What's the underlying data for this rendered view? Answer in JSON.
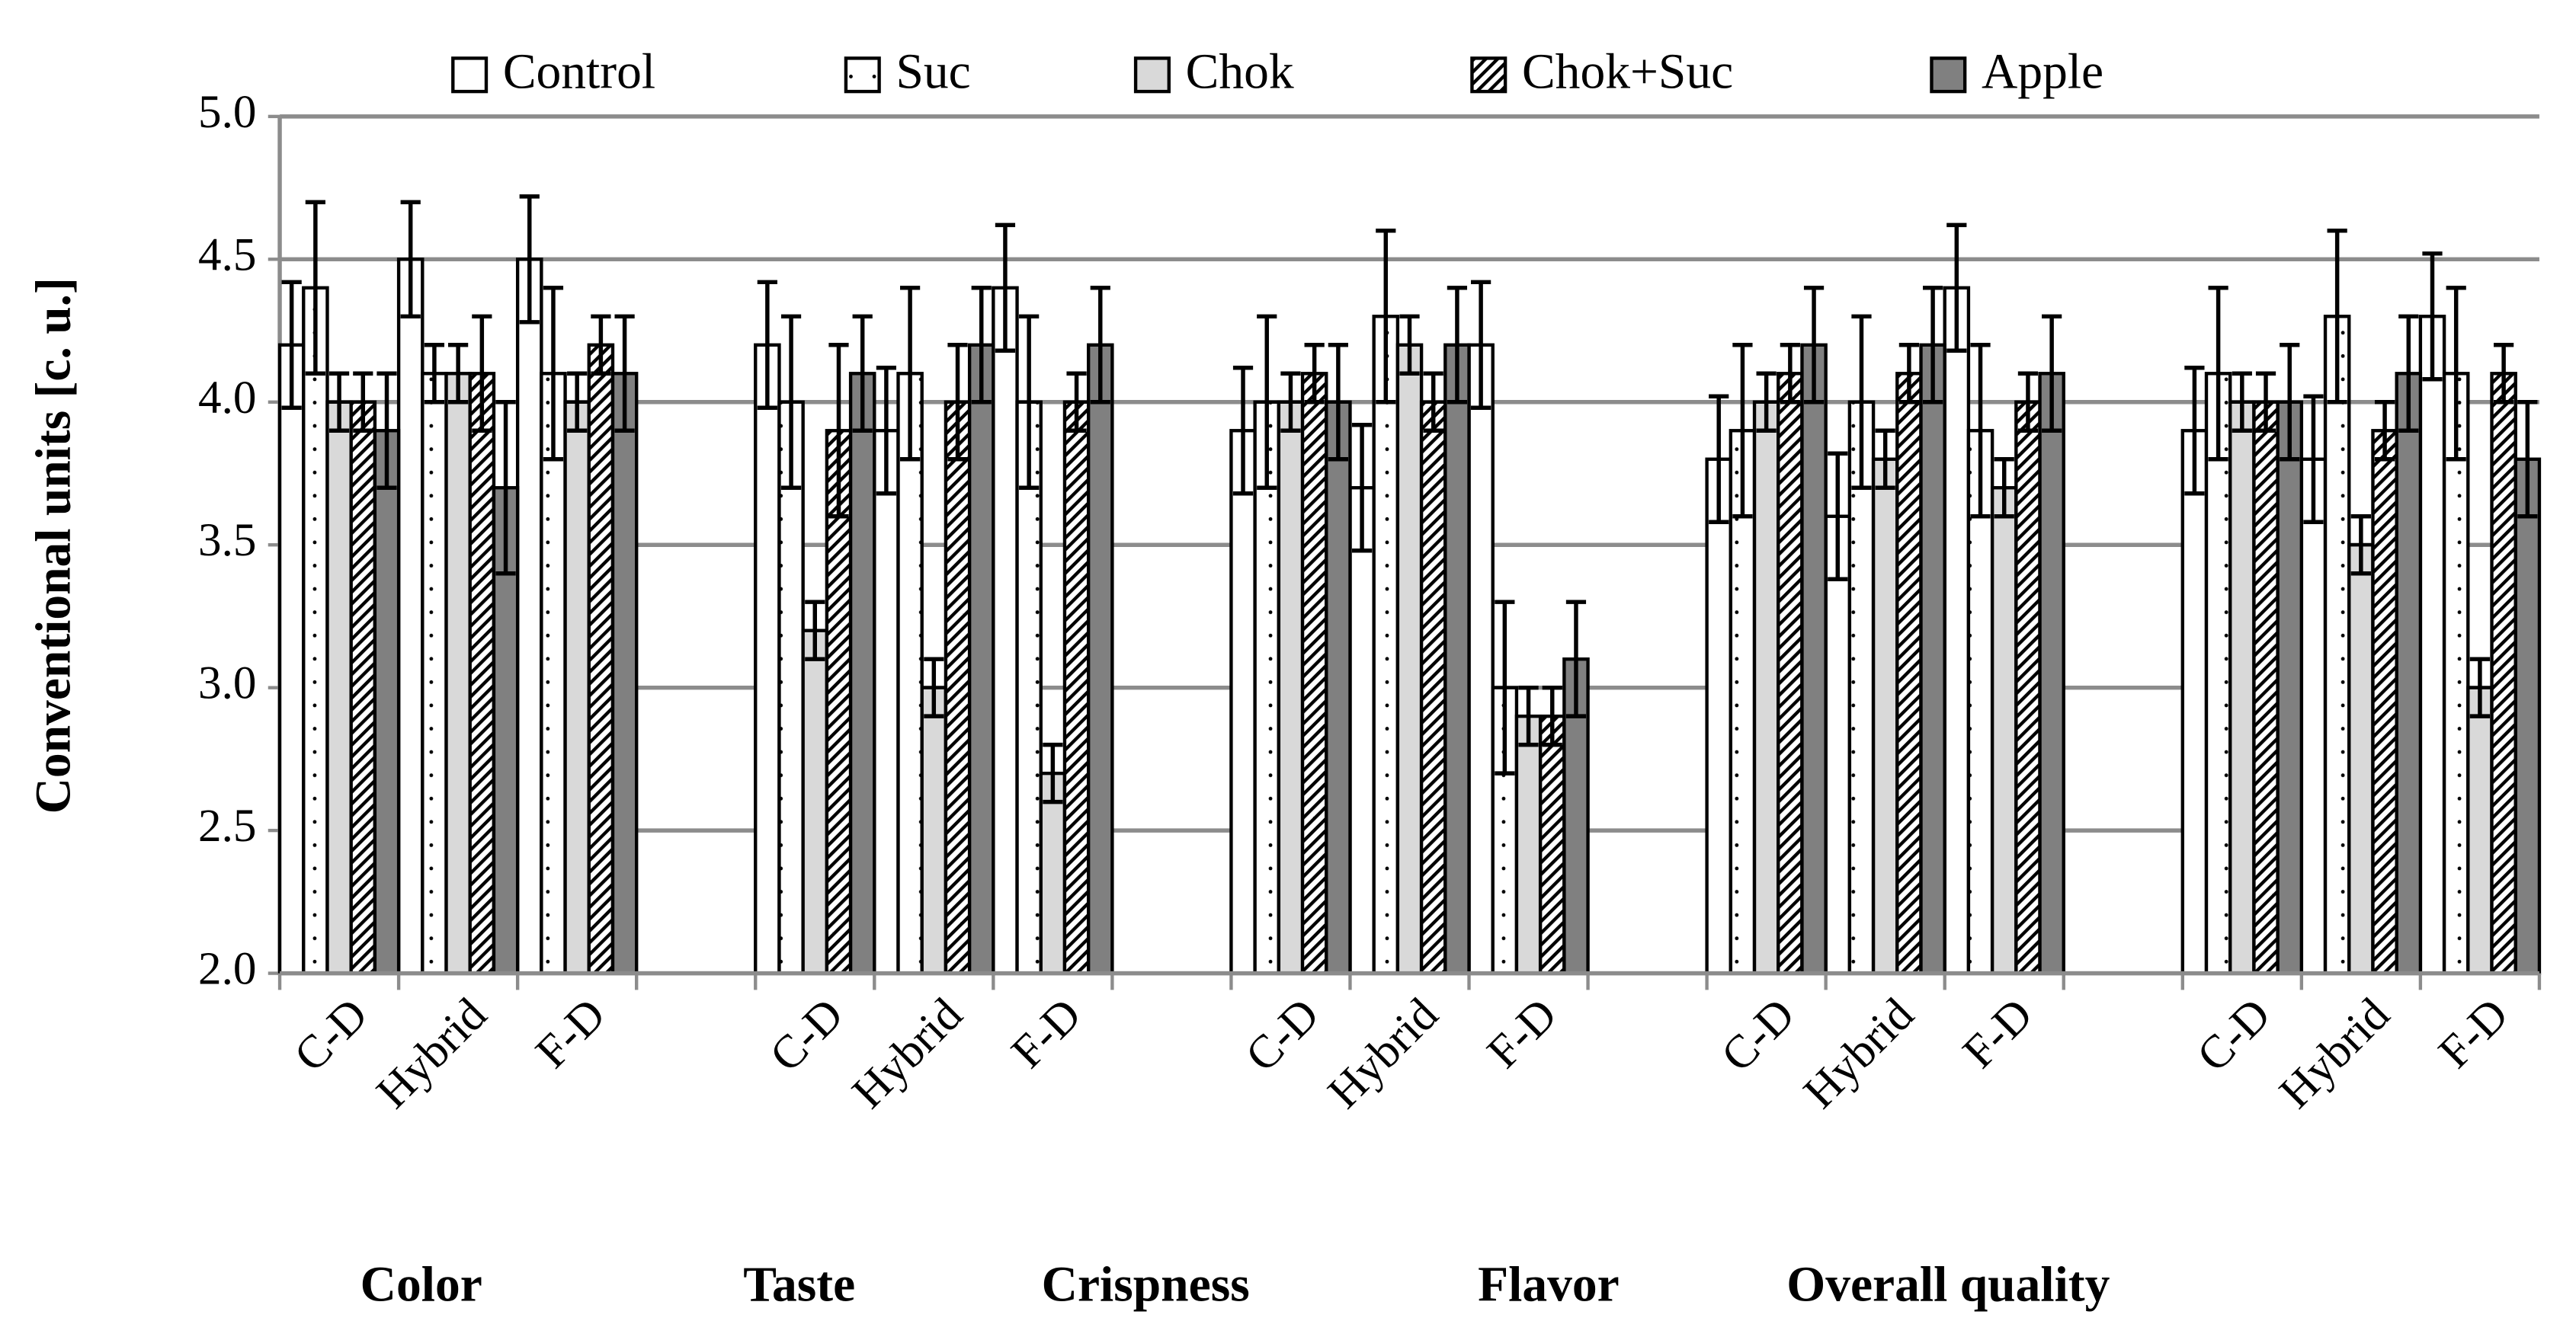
{
  "chart_data": {
    "type": "bar",
    "y_label": "Conventional units [c. u.]",
    "categories": [
      "C-D",
      "Hybrid",
      "F-D",
      null,
      "C-D",
      "Hybrid",
      "F-D",
      null,
      "C-D",
      "Hybrid",
      "F-D",
      null,
      "C-D",
      "Hybrid",
      "F-D",
      null,
      "C-D",
      "Hybrid",
      "F-D"
    ],
    "group_labels": [
      "Color",
      "Taste",
      "Crispness",
      "Flavor",
      "Overall quality"
    ],
    "series": [
      {
        "name": "Control",
        "color": "#ffffff",
        "pattern": "none",
        "values": [
          4.2,
          4.5,
          4.5,
          null,
          4.2,
          3.9,
          4.4,
          null,
          3.9,
          3.7,
          4.2,
          null,
          3.8,
          3.6,
          4.4,
          null,
          3.9,
          3.8,
          4.3
        ],
        "errors": [
          0.22,
          0.2,
          0.22,
          null,
          0.22,
          0.22,
          0.22,
          null,
          0.22,
          0.22,
          0.22,
          null,
          0.22,
          0.22,
          0.22,
          null,
          0.22,
          0.22,
          0.22
        ]
      },
      {
        "name": "Suc",
        "color": "#ffffff",
        "pattern": "dots",
        "values": [
          4.4,
          4.1,
          4.1,
          null,
          4.0,
          4.1,
          4.0,
          null,
          4.0,
          4.3,
          3.0,
          null,
          3.9,
          4.0,
          3.9,
          null,
          4.1,
          4.3,
          4.1
        ],
        "errors": [
          0.3,
          0.1,
          0.3,
          null,
          0.3,
          0.3,
          0.3,
          null,
          0.3,
          0.3,
          0.3,
          null,
          0.3,
          0.3,
          0.3,
          null,
          0.3,
          0.3,
          0.3
        ]
      },
      {
        "name": "Chok",
        "color": "#d9d9d9",
        "pattern": "none",
        "values": [
          4.0,
          4.1,
          4.0,
          null,
          3.2,
          3.0,
          2.7,
          null,
          4.0,
          4.2,
          2.9,
          null,
          4.0,
          3.8,
          3.7,
          null,
          4.0,
          3.5,
          3.0
        ],
        "errors": [
          0.1,
          0.1,
          0.1,
          null,
          0.1,
          0.1,
          0.1,
          null,
          0.1,
          0.1,
          0.1,
          null,
          0.1,
          0.1,
          0.1,
          null,
          0.1,
          0.1,
          0.1
        ]
      },
      {
        "name": "Chok+Suc",
        "color": "#ffffff",
        "pattern": "hatch",
        "values": [
          4.0,
          4.1,
          4.2,
          null,
          3.9,
          4.0,
          4.0,
          null,
          4.1,
          4.0,
          2.9,
          null,
          4.1,
          4.1,
          4.0,
          null,
          4.0,
          3.9,
          4.1
        ],
        "errors": [
          0.1,
          0.2,
          0.1,
          null,
          0.3,
          0.2,
          0.1,
          null,
          0.1,
          0.1,
          0.1,
          null,
          0.1,
          0.1,
          0.1,
          null,
          0.1,
          0.1,
          0.1
        ]
      },
      {
        "name": "Apple",
        "color": "#808080",
        "pattern": "none",
        "values": [
          3.9,
          3.7,
          4.1,
          null,
          4.1,
          4.2,
          4.2,
          null,
          4.0,
          4.2,
          3.1,
          null,
          4.2,
          4.2,
          4.1,
          null,
          4.0,
          4.1,
          3.8
        ],
        "errors": [
          0.2,
          0.3,
          0.2,
          null,
          0.2,
          0.2,
          0.2,
          null,
          0.2,
          0.2,
          0.2,
          null,
          0.2,
          0.2,
          0.2,
          null,
          0.2,
          0.2,
          0.2
        ]
      }
    ],
    "ylim": [
      2.0,
      5.0
    ],
    "yticks": [
      {
        "value": 2,
        "label": "2.0"
      },
      2.5,
      {
        "value": 3,
        "label": "3.0"
      },
      3.5,
      {
        "value": 4,
        "label": "4.0"
      },
      4.5,
      {
        "value": 5,
        "label": "5.0"
      }
    ],
    "grid": true,
    "legend": "top"
  }
}
